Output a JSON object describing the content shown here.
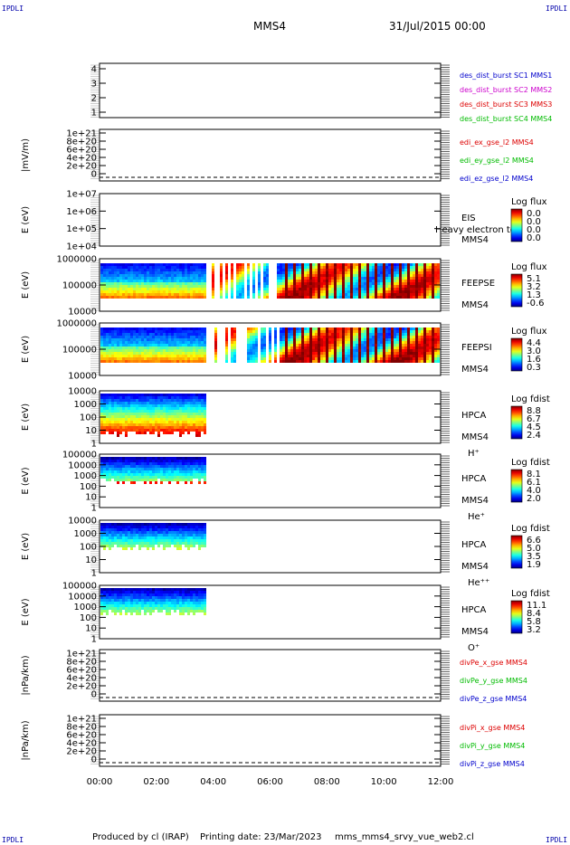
{
  "corner_label": "IPDLI",
  "header": {
    "spacecraft": "MMS4",
    "date": "31/Jul/2015 00:00"
  },
  "footer": {
    "produced": "Produced by cl (IRAP)",
    "printing": "Printing date: 23/Mar/2023",
    "script": "mms_mms4_srvy_vue_web2.cl"
  },
  "time_axis": {
    "ticks": [
      "00:00",
      "02:00",
      "04:00",
      "06:00",
      "08:00",
      "10:00",
      "12:00"
    ]
  },
  "colors": {
    "red": "#dd0000",
    "green": "#00bb00",
    "blue": "#0000cc",
    "magenta": "#cc00cc"
  },
  "chart_data": [
    {
      "type": "line",
      "ylim": [
        0.5,
        4.5
      ],
      "ylabel": "",
      "yticks": [
        "4",
        "3",
        "2",
        "1"
      ],
      "legend": [
        {
          "text": "des_dist_burst SC1 MMS1",
          "color": "#0000cc"
        },
        {
          "text": "des_dist_burst SC2 MMS2",
          "color": "#cc00cc"
        },
        {
          "text": "des_dist_burst SC3 MMS3",
          "color": "#dd0000"
        },
        {
          "text": "des_dist_burst SC4 MMS4",
          "color": "#00bb00"
        }
      ]
    },
    {
      "type": "line",
      "ylabel": "|mV/m)",
      "yticks": [
        "1e+21",
        "8e+20",
        "6e+20",
        "4e+20",
        "2e+20",
        "0"
      ],
      "legend": [
        {
          "text": "edi_ex_gse_l2 MMS4",
          "color": "#dd0000"
        },
        {
          "text": "edi_ey_gse_l2 MMS4",
          "color": "#00bb00"
        },
        {
          "text": "edi_ez_gse_l2 MMS4",
          "color": "#0000cc"
        }
      ]
    },
    {
      "type": "heatmap",
      "ylabel": "E (eV)",
      "scale": "log",
      "yticks": [
        "1e+07",
        "1e+06",
        "1e+05",
        "1e+04"
      ],
      "label1": "EIS",
      "overlay": "Heavy electron to",
      "label2": "MMS4",
      "label3": "",
      "cbar_title": "Log flux",
      "cbar_ticks": [
        "0.0",
        "0.0",
        "0.0",
        "0.0"
      ]
    },
    {
      "type": "heatmap",
      "ylabel": "E (eV)",
      "scale": "log",
      "yticks": [
        "1000000",
        "100000",
        "10000"
      ],
      "label1": "FEEPSE",
      "label2": "MMS4",
      "label3": "",
      "cbar_title": "Log flux",
      "cbar_ticks": [
        "5.1",
        "3.2",
        "1.3",
        "-0.6"
      ],
      "data_extent_hours": [
        0,
        12
      ]
    },
    {
      "type": "heatmap",
      "ylabel": "E (eV)",
      "scale": "log",
      "yticks": [
        "1000000",
        "100000",
        "10000"
      ],
      "label1": "FEEPSI",
      "label2": "MMS4",
      "label3": "",
      "cbar_title": "Log flux",
      "cbar_ticks": [
        "4.4",
        "3.0",
        "1.6",
        "0.3"
      ],
      "data_extent_hours": [
        0,
        12
      ]
    },
    {
      "type": "heatmap",
      "ylabel": "E (eV)",
      "scale": "log",
      "yticks": [
        "10000",
        "1000",
        "100",
        "10",
        "1"
      ],
      "label1": "HPCA",
      "label2": "MMS4",
      "label3": "H⁺",
      "cbar_title": "Log fdist",
      "cbar_ticks": [
        "8.8",
        "6.7",
        "4.5",
        "2.4"
      ],
      "data_extent_hours": [
        0,
        3.7
      ]
    },
    {
      "type": "heatmap",
      "ylabel": "E (eV)",
      "scale": "log",
      "yticks": [
        "100000",
        "10000",
        "1000",
        "100",
        "10",
        "1"
      ],
      "label1": "HPCA",
      "label2": "MMS4",
      "label3": "He⁺",
      "cbar_title": "Log fdist",
      "cbar_ticks": [
        "8.1",
        "6.1",
        "4.0",
        "2.0"
      ],
      "data_extent_hours": [
        0,
        3.7
      ]
    },
    {
      "type": "heatmap",
      "ylabel": "E (eV)",
      "scale": "log",
      "yticks": [
        "10000",
        "1000",
        "100",
        "10",
        "1"
      ],
      "label1": "HPCA",
      "label2": "MMS4",
      "label3": "He⁺⁺",
      "cbar_title": "Log fdist",
      "cbar_ticks": [
        "6.6",
        "5.0",
        "3.5",
        "1.9"
      ],
      "data_extent_hours": [
        0,
        3.7
      ]
    },
    {
      "type": "heatmap",
      "ylabel": "E (eV)",
      "scale": "log",
      "yticks": [
        "100000",
        "10000",
        "1000",
        "100",
        "10",
        "1"
      ],
      "label1": "HPCA",
      "label2": "MMS4",
      "label3": "O⁺",
      "cbar_title": "Log fdist",
      "cbar_ticks": [
        "11.1",
        "8.4",
        "5.8",
        "3.2"
      ],
      "data_extent_hours": [
        0,
        3.7
      ]
    },
    {
      "type": "line",
      "ylabel": "|nPa/km)",
      "yticks": [
        "1e+21",
        "8e+20",
        "6e+20",
        "4e+20",
        "2e+20",
        "0"
      ],
      "legend": [
        {
          "text": "divPe_x_gse MMS4",
          "color": "#dd0000"
        },
        {
          "text": "divPe_y_gse MMS4",
          "color": "#00bb00"
        },
        {
          "text": "divPe_z_gse MMS4",
          "color": "#0000cc"
        }
      ]
    },
    {
      "type": "line",
      "ylabel": "|nPa/km)",
      "yticks": [
        "1e+21",
        "8e+20",
        "6e+20",
        "4e+20",
        "2e+20",
        "0"
      ],
      "legend": [
        {
          "text": "divPi_x_gse MMS4",
          "color": "#dd0000"
        },
        {
          "text": "divPi_y_gse MMS4",
          "color": "#00bb00"
        },
        {
          "text": "divPi_z_gse MMS4",
          "color": "#0000cc"
        }
      ]
    }
  ]
}
